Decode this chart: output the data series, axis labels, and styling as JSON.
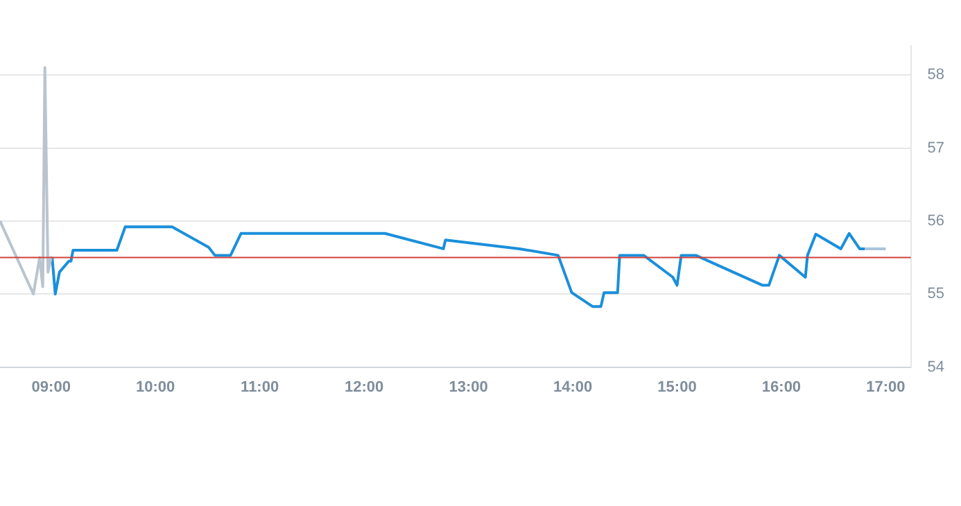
{
  "chart_data": {
    "type": "line",
    "xlim": [
      8.51,
      17.24
    ],
    "ylim": [
      54,
      58.4
    ],
    "xticks": [
      {
        "value": 9,
        "label": "09:00"
      },
      {
        "value": 10,
        "label": "10:00"
      },
      {
        "value": 11,
        "label": "11:00"
      },
      {
        "value": 12,
        "label": "12:00"
      },
      {
        "value": 13,
        "label": "13:00"
      },
      {
        "value": 14,
        "label": "14:00"
      },
      {
        "value": 15,
        "label": "15:00"
      },
      {
        "value": 16,
        "label": "16:00"
      },
      {
        "value": 17,
        "label": "17:00"
      }
    ],
    "yticks": [
      54,
      55,
      56,
      57,
      58
    ],
    "grid": "y",
    "legend": false,
    "marker": "none",
    "line_style": "solid",
    "series": [
      {
        "color": "#b9c4ce",
        "x": [
          8.51,
          8.83,
          8.89,
          8.92,
          8.94,
          8.97,
          9.0,
          9.01
        ],
        "values": [
          56.0,
          55.0,
          55.5,
          55.1,
          58.1,
          55.3,
          55.5,
          55.5
        ]
      },
      {
        "color": "#1a8fdb",
        "x": [
          9.01,
          9.04,
          9.08,
          9.17,
          9.19,
          9.21,
          9.63,
          9.71,
          10.16,
          10.51,
          10.57,
          10.72,
          10.82,
          12.2,
          12.76,
          12.78,
          13.49,
          13.86,
          13.99,
          14.19,
          14.27,
          14.3,
          14.43,
          14.45,
          14.68,
          14.96,
          15.0,
          15.04,
          15.18,
          15.82,
          15.88,
          15.98,
          16.23,
          16.25,
          16.33,
          16.57,
          16.65,
          16.75,
          16.8
        ],
        "values": [
          55.5,
          55.0,
          55.3,
          55.45,
          55.45,
          55.6,
          55.6,
          55.92,
          55.92,
          55.64,
          55.53,
          55.53,
          55.83,
          55.83,
          55.62,
          55.74,
          55.62,
          55.53,
          55.02,
          54.83,
          54.83,
          55.02,
          55.02,
          55.53,
          55.53,
          55.23,
          55.12,
          55.53,
          55.53,
          55.12,
          55.12,
          55.53,
          55.23,
          55.53,
          55.82,
          55.62,
          55.83,
          55.62,
          55.62
        ]
      },
      {
        "color": "#a9c3d9",
        "x": [
          16.8,
          17.0
        ],
        "values": [
          55.62,
          55.62
        ]
      }
    ],
    "ref_lines": [
      {
        "axis": "y",
        "value": 55.5,
        "color": "#d0413b"
      }
    ]
  }
}
